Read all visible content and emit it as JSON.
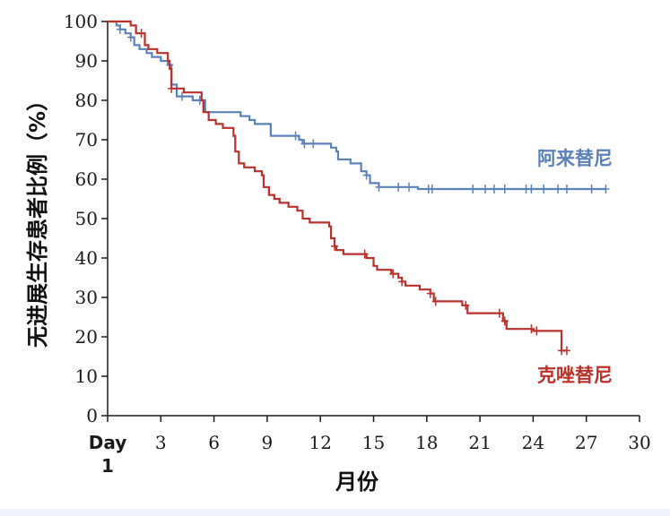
{
  "chart_data": {
    "type": "line",
    "title": "",
    "xlabel": "月份",
    "ylabel": "无进展生存患者比例（%）",
    "xlim": [
      0,
      30
    ],
    "ylim": [
      0,
      100
    ],
    "x_ticks": [
      0,
      3,
      6,
      9,
      12,
      15,
      18,
      21,
      24,
      27,
      30
    ],
    "x_tick_labels": [
      "Day",
      "3",
      "6",
      "9",
      "12",
      "15",
      "18",
      "21",
      "24",
      "27",
      "30"
    ],
    "x_first_tick_sublabel": "1",
    "y_ticks": [
      0,
      10,
      20,
      30,
      40,
      50,
      60,
      70,
      80,
      90,
      100
    ],
    "y_tick_labels": [
      "0",
      "10",
      "20",
      "30",
      "40",
      "50",
      "60",
      "70",
      "80",
      "90",
      "100"
    ],
    "grid": false,
    "legend": "inline labels at right",
    "series": [
      {
        "name": "阿来替尼",
        "color": "#5b82b8",
        "step": true,
        "points": [
          [
            0,
            100
          ],
          [
            0.4,
            100
          ],
          [
            0.5,
            99
          ],
          [
            0.7,
            98
          ],
          [
            1,
            97
          ],
          [
            1.3,
            96
          ],
          [
            1.5,
            94
          ],
          [
            1.8,
            93
          ],
          [
            2.2,
            92
          ],
          [
            2.5,
            91
          ],
          [
            3,
            90
          ],
          [
            3.4,
            89
          ],
          [
            3.6,
            84
          ],
          [
            3.9,
            81
          ],
          [
            4.8,
            80
          ],
          [
            5.5,
            77
          ],
          [
            7.5,
            76
          ],
          [
            8,
            75
          ],
          [
            8.3,
            74
          ],
          [
            9.2,
            71
          ],
          [
            10.8,
            70
          ],
          [
            11,
            69
          ],
          [
            12.6,
            68
          ],
          [
            12.9,
            67
          ],
          [
            13,
            65
          ],
          [
            13.7,
            64
          ],
          [
            14.3,
            62
          ],
          [
            14.6,
            61
          ],
          [
            14.8,
            59
          ],
          [
            15.3,
            58
          ],
          [
            17.5,
            57.5
          ],
          [
            28.1,
            57.5
          ]
        ],
        "censor_x": [
          0.7,
          1.3,
          3.5,
          4.2,
          5.2,
          10.6,
          11.1,
          11.6,
          14.6,
          15.3,
          16.4,
          17.0,
          18.1,
          18.3,
          20.6,
          21.3,
          21.8,
          22.4,
          23.6,
          23.9,
          24.6,
          25.4,
          25.9,
          27.3,
          28.1
        ]
      },
      {
        "name": "克唑替尼",
        "color": "#b8312a",
        "step": true,
        "points": [
          [
            0,
            100
          ],
          [
            0.9,
            100
          ],
          [
            1.3,
            99
          ],
          [
            1.6,
            97
          ],
          [
            2.1,
            94
          ],
          [
            2.3,
            93
          ],
          [
            2.8,
            92
          ],
          [
            3.4,
            90
          ],
          [
            3.5,
            88
          ],
          [
            3.6,
            83
          ],
          [
            4.3,
            82
          ],
          [
            5.3,
            80
          ],
          [
            5.4,
            77
          ],
          [
            5.7,
            75
          ],
          [
            6.1,
            74
          ],
          [
            6.5,
            73
          ],
          [
            7.1,
            71
          ],
          [
            7.2,
            67
          ],
          [
            7.4,
            64
          ],
          [
            7.7,
            63
          ],
          [
            8.3,
            62
          ],
          [
            8.7,
            61
          ],
          [
            8.8,
            58
          ],
          [
            9.1,
            56
          ],
          [
            9.4,
            55
          ],
          [
            9.7,
            54
          ],
          [
            10.2,
            53
          ],
          [
            10.7,
            52
          ],
          [
            11.0,
            50
          ],
          [
            11.4,
            49
          ],
          [
            12.5,
            48
          ],
          [
            12.6,
            45
          ],
          [
            12.8,
            43
          ],
          [
            12.9,
            42
          ],
          [
            13.3,
            41
          ],
          [
            14.6,
            40
          ],
          [
            15.0,
            38
          ],
          [
            15.2,
            37
          ],
          [
            16.0,
            36
          ],
          [
            16.4,
            35
          ],
          [
            16.6,
            34
          ],
          [
            16.8,
            33
          ],
          [
            17.6,
            32
          ],
          [
            18.2,
            31
          ],
          [
            18.4,
            29
          ],
          [
            20.0,
            28
          ],
          [
            20.3,
            26
          ],
          [
            22.3,
            24
          ],
          [
            22.5,
            22
          ],
          [
            24.0,
            21.5
          ],
          [
            25.5,
            21.5
          ],
          [
            25.6,
            16.5
          ],
          [
            25.9,
            16.5
          ]
        ],
        "censor_x": [
          1.9,
          3.6,
          12.8,
          14.5,
          16.1,
          16.6,
          18.2,
          18.5,
          20.2,
          22.1,
          22.4,
          23.9,
          24.2,
          25.6,
          25.9
        ]
      }
    ]
  },
  "page": {
    "bottom_strip_color": "#eef3fa"
  }
}
